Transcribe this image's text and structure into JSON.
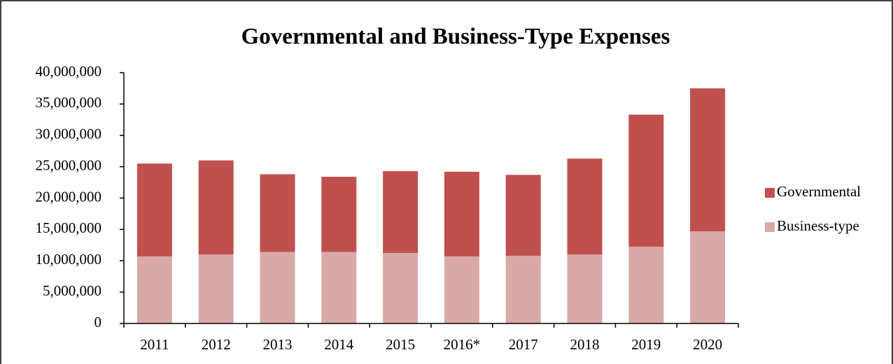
{
  "chart_data": {
    "type": "stacked_bar",
    "title": "Governmental and Business-Type Expenses",
    "categories": [
      "2011",
      "2012",
      "2013",
      "2014",
      "2015",
      "2016*",
      "2017",
      "2018",
      "2019",
      "2020"
    ],
    "series": [
      {
        "name": "Governmental",
        "color": "#c0504d",
        "values": [
          14800000,
          15000000,
          12400000,
          12000000,
          13050000,
          13500000,
          12900000,
          15300000,
          21050000,
          22800000
        ]
      },
      {
        "name": "Business-type",
        "color": "#d9a9a8",
        "values": [
          10700000,
          11000000,
          11400000,
          11400000,
          11250000,
          10700000,
          10800000,
          11000000,
          12250000,
          14700000
        ]
      }
    ],
    "ylim": [
      0,
      40000000
    ],
    "yticks": [
      0,
      {
        "value": 5000000,
        "label": "5,000,000"
      },
      {
        "value": 10000000,
        "label": "10,000,000"
      },
      {
        "value": 15000000,
        "label": "15,000,000"
      },
      {
        "value": 20000000,
        "label": "20,000,000"
      },
      {
        "value": 25000000,
        "label": "25,000,000"
      },
      {
        "value": 30000000,
        "label": "30,000,000"
      },
      {
        "value": 35000000,
        "label": "35,000,000"
      },
      {
        "value": 40000000,
        "label": "40,000,000"
      }
    ],
    "legend": "right"
  }
}
